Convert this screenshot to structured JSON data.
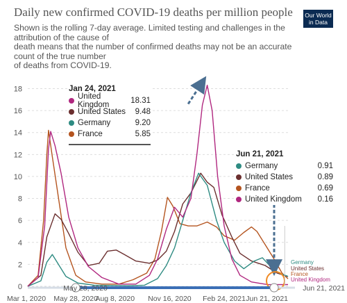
{
  "header": {
    "title": "Daily new confirmed COVID-19 deaths per million people",
    "subtitle_lines": [
      "Shown is the rolling 7-day average. Limited testing and challenges in the",
      "attribution of the cause of",
      "death means that the number of confirmed deaths may not be an accurate",
      "count of the true number",
      "of deaths from COVID-19."
    ],
    "logo_line1": "Our World",
    "logo_line2": "in Data"
  },
  "timeline": {
    "start_label": "May 28, 2020",
    "end_label": "Jun 21, 2021"
  },
  "chart_data": {
    "type": "line",
    "title": "Daily new confirmed COVID-19 deaths per million people",
    "y_ticks": [
      0,
      2,
      4,
      6,
      8,
      10,
      12,
      14,
      16,
      18
    ],
    "ylim": [
      0,
      18.6
    ],
    "x_ticks": [
      "Mar 1, 2020",
      "May 28, 2020",
      "Aug 8, 2020",
      "Nov 16, 2020",
      "Feb 24, 2021",
      "Jun 21, 2021"
    ],
    "xlim": [
      "2020-03-01",
      "2021-06-21"
    ],
    "grid": "horizontal dashed",
    "colors": {
      "United Kingdom": "#b0277f",
      "United States": "#6b2f2f",
      "Germany": "#2e8b82",
      "France": "#b4541f"
    },
    "series": [
      {
        "name": "United Kingdom",
        "points": [
          [
            "2020-03-01",
            0
          ],
          [
            "2020-03-20",
            0.8
          ],
          [
            "2020-04-01",
            5.5
          ],
          [
            "2020-04-08",
            12.5
          ],
          [
            "2020-04-12",
            14.1
          ],
          [
            "2020-04-20",
            12.8
          ],
          [
            "2020-05-01",
            10.3
          ],
          [
            "2020-05-15",
            6.3
          ],
          [
            "2020-06-01",
            3.5
          ],
          [
            "2020-06-20",
            1.8
          ],
          [
            "2020-07-15",
            0.8
          ],
          [
            "2020-08-15",
            0.2
          ],
          [
            "2020-09-15",
            0.2
          ],
          [
            "2020-10-10",
            1.0
          ],
          [
            "2020-10-25",
            2.5
          ],
          [
            "2020-11-10",
            5.2
          ],
          [
            "2020-11-25",
            7.2
          ],
          [
            "2020-12-10",
            6.3
          ],
          [
            "2020-12-25",
            8.0
          ],
          [
            "2021-01-05",
            12.0
          ],
          [
            "2021-01-15",
            16.5
          ],
          [
            "2021-01-24",
            18.31
          ],
          [
            "2021-02-02",
            16.0
          ],
          [
            "2021-02-12",
            10.0
          ],
          [
            "2021-02-24",
            5.5
          ],
          [
            "2021-03-10",
            2.5
          ],
          [
            "2021-03-25",
            1.0
          ],
          [
            "2021-04-15",
            0.4
          ],
          [
            "2021-05-15",
            0.15
          ],
          [
            "2021-06-21",
            0.16
          ]
        ]
      },
      {
        "name": "United States",
        "points": [
          [
            "2020-03-01",
            0
          ],
          [
            "2020-03-25",
            1.0
          ],
          [
            "2020-04-05",
            4.5
          ],
          [
            "2020-04-20",
            6.6
          ],
          [
            "2020-05-01",
            6.1
          ],
          [
            "2020-05-15",
            4.8
          ],
          [
            "2020-06-01",
            3.1
          ],
          [
            "2020-06-20",
            1.9
          ],
          [
            "2020-07-10",
            2.1
          ],
          [
            "2020-07-25",
            3.2
          ],
          [
            "2020-08-10",
            3.3
          ],
          [
            "2020-08-25",
            2.9
          ],
          [
            "2020-09-15",
            2.3
          ],
          [
            "2020-10-10",
            2.1
          ],
          [
            "2020-10-25",
            2.4
          ],
          [
            "2020-11-10",
            3.2
          ],
          [
            "2020-11-25",
            5.0
          ],
          [
            "2020-12-10",
            7.5
          ],
          [
            "2020-12-25",
            8.5
          ],
          [
            "2021-01-12",
            10.3
          ],
          [
            "2021-01-24",
            9.48
          ],
          [
            "2021-02-05",
            9.0
          ],
          [
            "2021-02-20",
            6.5
          ],
          [
            "2021-03-10",
            4.5
          ],
          [
            "2021-03-25",
            3.0
          ],
          [
            "2021-04-15",
            2.3
          ],
          [
            "2021-05-10",
            1.9
          ],
          [
            "2021-06-01",
            1.2
          ],
          [
            "2021-06-21",
            0.89
          ]
        ]
      },
      {
        "name": "Germany",
        "points": [
          [
            "2020-03-01",
            0
          ],
          [
            "2020-03-25",
            0.5
          ],
          [
            "2020-04-05",
            2.2
          ],
          [
            "2020-04-15",
            2.9
          ],
          [
            "2020-04-25",
            2.1
          ],
          [
            "2020-05-10",
            0.9
          ],
          [
            "2020-06-01",
            0.3
          ],
          [
            "2020-07-01",
            0.1
          ],
          [
            "2020-09-01",
            0.06
          ],
          [
            "2020-10-01",
            0.1
          ],
          [
            "2020-10-25",
            0.7
          ],
          [
            "2020-11-10",
            1.9
          ],
          [
            "2020-11-25",
            3.5
          ],
          [
            "2020-12-10",
            6.0
          ],
          [
            "2020-12-25",
            8.5
          ],
          [
            "2021-01-08",
            10.3
          ],
          [
            "2021-01-24",
            9.2
          ],
          [
            "2021-02-10",
            6.0
          ],
          [
            "2021-02-24",
            4.0
          ],
          [
            "2021-03-15",
            2.3
          ],
          [
            "2021-04-01",
            1.6
          ],
          [
            "2021-04-20",
            2.3
          ],
          [
            "2021-05-05",
            2.6
          ],
          [
            "2021-05-20",
            1.8
          ],
          [
            "2021-06-05",
            1.2
          ],
          [
            "2021-06-21",
            0.91
          ]
        ]
      },
      {
        "name": "France",
        "points": [
          [
            "2020-03-01",
            0
          ],
          [
            "2020-03-20",
            1.0
          ],
          [
            "2020-03-30",
            6.0
          ],
          [
            "2020-04-05",
            12.0
          ],
          [
            "2020-04-08",
            14.2
          ],
          [
            "2020-04-15",
            11.8
          ],
          [
            "2020-04-25",
            8.5
          ],
          [
            "2020-05-10",
            3.5
          ],
          [
            "2020-05-28",
            1.0
          ],
          [
            "2020-06-15",
            0.4
          ],
          [
            "2020-07-15",
            0.2
          ],
          [
            "2020-08-15",
            0.2
          ],
          [
            "2020-09-10",
            0.6
          ],
          [
            "2020-10-05",
            1.2
          ],
          [
            "2020-10-20",
            2.5
          ],
          [
            "2020-11-01",
            5.0
          ],
          [
            "2020-11-12",
            8.1
          ],
          [
            "2020-11-22",
            7.3
          ],
          [
            "2020-12-05",
            5.7
          ],
          [
            "2020-12-20",
            5.5
          ],
          [
            "2021-01-05",
            5.5
          ],
          [
            "2021-01-24",
            5.85
          ],
          [
            "2021-02-10",
            5.4
          ],
          [
            "2021-02-24",
            4.6
          ],
          [
            "2021-03-15",
            4.2
          ],
          [
            "2021-04-01",
            4.9
          ],
          [
            "2021-04-15",
            5.4
          ],
          [
            "2021-04-25",
            5.0
          ],
          [
            "2021-05-10",
            3.8
          ],
          [
            "2021-05-25",
            2.6
          ],
          [
            "2021-06-10",
            1.2
          ],
          [
            "2021-06-21",
            0.69
          ]
        ]
      }
    ],
    "tooltips": [
      {
        "date": "Jan 24, 2021",
        "rows": [
          {
            "name": "United Kingdom",
            "value": "18.31"
          },
          {
            "name": "United States",
            "value": "9.48"
          },
          {
            "name": "Germany",
            "value": "9.20"
          },
          {
            "name": "France",
            "value": "5.85"
          }
        ]
      },
      {
        "date": "Jun 21, 2021",
        "rows": [
          {
            "name": "Germany",
            "value": "0.91"
          },
          {
            "name": "United States",
            "value": "0.89"
          },
          {
            "name": "France",
            "value": "0.69"
          },
          {
            "name": "United Kingdom",
            "value": "0.16"
          }
        ]
      }
    ],
    "end_labels": [
      "Germany",
      "United States",
      "France",
      "United Kingdom"
    ]
  }
}
